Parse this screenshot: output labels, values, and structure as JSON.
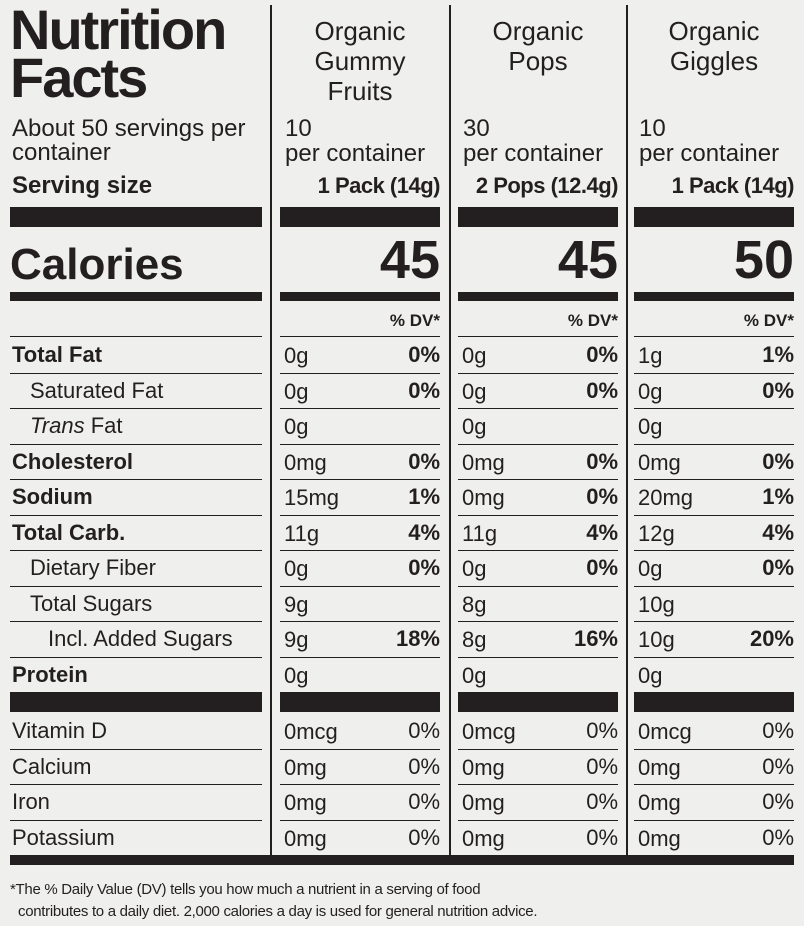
{
  "title": [
    "Nutrition",
    "Facts"
  ],
  "servings_label": "About 50 servings per container",
  "serving_size_label": "Serving size",
  "calories_label": "Calories",
  "dv_header": "% DV*",
  "products": [
    {
      "name": "Organic Gummy Fruits",
      "servings": "10",
      "servings_unit": "per container",
      "serving_size": "1 Pack (14g)",
      "calories": 45
    },
    {
      "name": "Organic Pops",
      "servings": "30",
      "servings_unit": "per container",
      "serving_size": "2 Pops (12.4g)",
      "calories": 45
    },
    {
      "name": "Organic Giggles",
      "servings": "10",
      "servings_unit": "per container",
      "serving_size": "1 Pack (14g)",
      "calories": 50
    }
  ],
  "nutrients": [
    {
      "label": "Total Fat",
      "bold": true,
      "indent": 0,
      "values": [
        {
          "amount": "0g",
          "dv": "0%"
        },
        {
          "amount": "0g",
          "dv": "0%"
        },
        {
          "amount": "1g",
          "dv": "1%"
        }
      ]
    },
    {
      "label": "Saturated Fat",
      "bold": false,
      "indent": 1,
      "values": [
        {
          "amount": "0g",
          "dv": "0%"
        },
        {
          "amount": "0g",
          "dv": "0%"
        },
        {
          "amount": "0g",
          "dv": "0%"
        }
      ]
    },
    {
      "label": "Trans Fat",
      "bold": false,
      "indent": 1,
      "italic_first_word": true,
      "values": [
        {
          "amount": "0g"
        },
        {
          "amount": "0g"
        },
        {
          "amount": "0g"
        }
      ]
    },
    {
      "label": "Cholesterol",
      "bold": true,
      "indent": 0,
      "values": [
        {
          "amount": "0mg",
          "dv": "0%"
        },
        {
          "amount": "0mg",
          "dv": "0%"
        },
        {
          "amount": "0mg",
          "dv": "0%"
        }
      ]
    },
    {
      "label": "Sodium",
      "bold": true,
      "indent": 0,
      "values": [
        {
          "amount": "15mg",
          "dv": "1%"
        },
        {
          "amount": "0mg",
          "dv": "0%"
        },
        {
          "amount": "20mg",
          "dv": "1%"
        }
      ]
    },
    {
      "label": "Total Carb.",
      "bold": true,
      "indent": 0,
      "values": [
        {
          "amount": "11g",
          "dv": "4%"
        },
        {
          "amount": "11g",
          "dv": "4%"
        },
        {
          "amount": "12g",
          "dv": "4%"
        }
      ]
    },
    {
      "label": "Dietary Fiber",
      "bold": false,
      "indent": 1,
      "values": [
        {
          "amount": "0g",
          "dv": "0%"
        },
        {
          "amount": "0g",
          "dv": "0%"
        },
        {
          "amount": "0g",
          "dv": "0%"
        }
      ]
    },
    {
      "label": "Total Sugars",
      "bold": false,
      "indent": 1,
      "values": [
        {
          "amount": "9g"
        },
        {
          "amount": "8g"
        },
        {
          "amount": "10g"
        }
      ]
    },
    {
      "label": "Incl. Added Sugars",
      "bold": false,
      "indent": 2,
      "values": [
        {
          "amount": "9g",
          "dv": "18%"
        },
        {
          "amount": "8g",
          "dv": "16%"
        },
        {
          "amount": "10g",
          "dv": "20%"
        }
      ]
    },
    {
      "label": "Protein",
      "bold": true,
      "indent": 0,
      "values": [
        {
          "amount": "0g"
        },
        {
          "amount": "0g"
        },
        {
          "amount": "0g"
        }
      ]
    }
  ],
  "vitamins": [
    {
      "label": "Vitamin D",
      "values": [
        {
          "amount": "0mcg",
          "dv": "0%"
        },
        {
          "amount": "0mcg",
          "dv": "0%"
        },
        {
          "amount": "0mcg",
          "dv": "0%"
        }
      ]
    },
    {
      "label": "Calcium",
      "values": [
        {
          "amount": "0mg",
          "dv": "0%"
        },
        {
          "amount": "0mg",
          "dv": "0%"
        },
        {
          "amount": "0mg",
          "dv": "0%"
        }
      ]
    },
    {
      "label": "Iron",
      "values": [
        {
          "amount": "0mg",
          "dv": "0%"
        },
        {
          "amount": "0mg",
          "dv": "0%"
        },
        {
          "amount": "0mg",
          "dv": "0%"
        }
      ]
    },
    {
      "label": "Potassium",
      "values": [
        {
          "amount": "0mg",
          "dv": "0%"
        },
        {
          "amount": "0mg",
          "dv": "0%"
        },
        {
          "amount": "0mg",
          "dv": "0%"
        }
      ]
    }
  ],
  "footnote": [
    "*The % Daily Value (DV) tells you how much a nutrient in a serving of food",
    "contributes to a daily diet. 2,000 calories a day is used for general nutrition advice."
  ]
}
